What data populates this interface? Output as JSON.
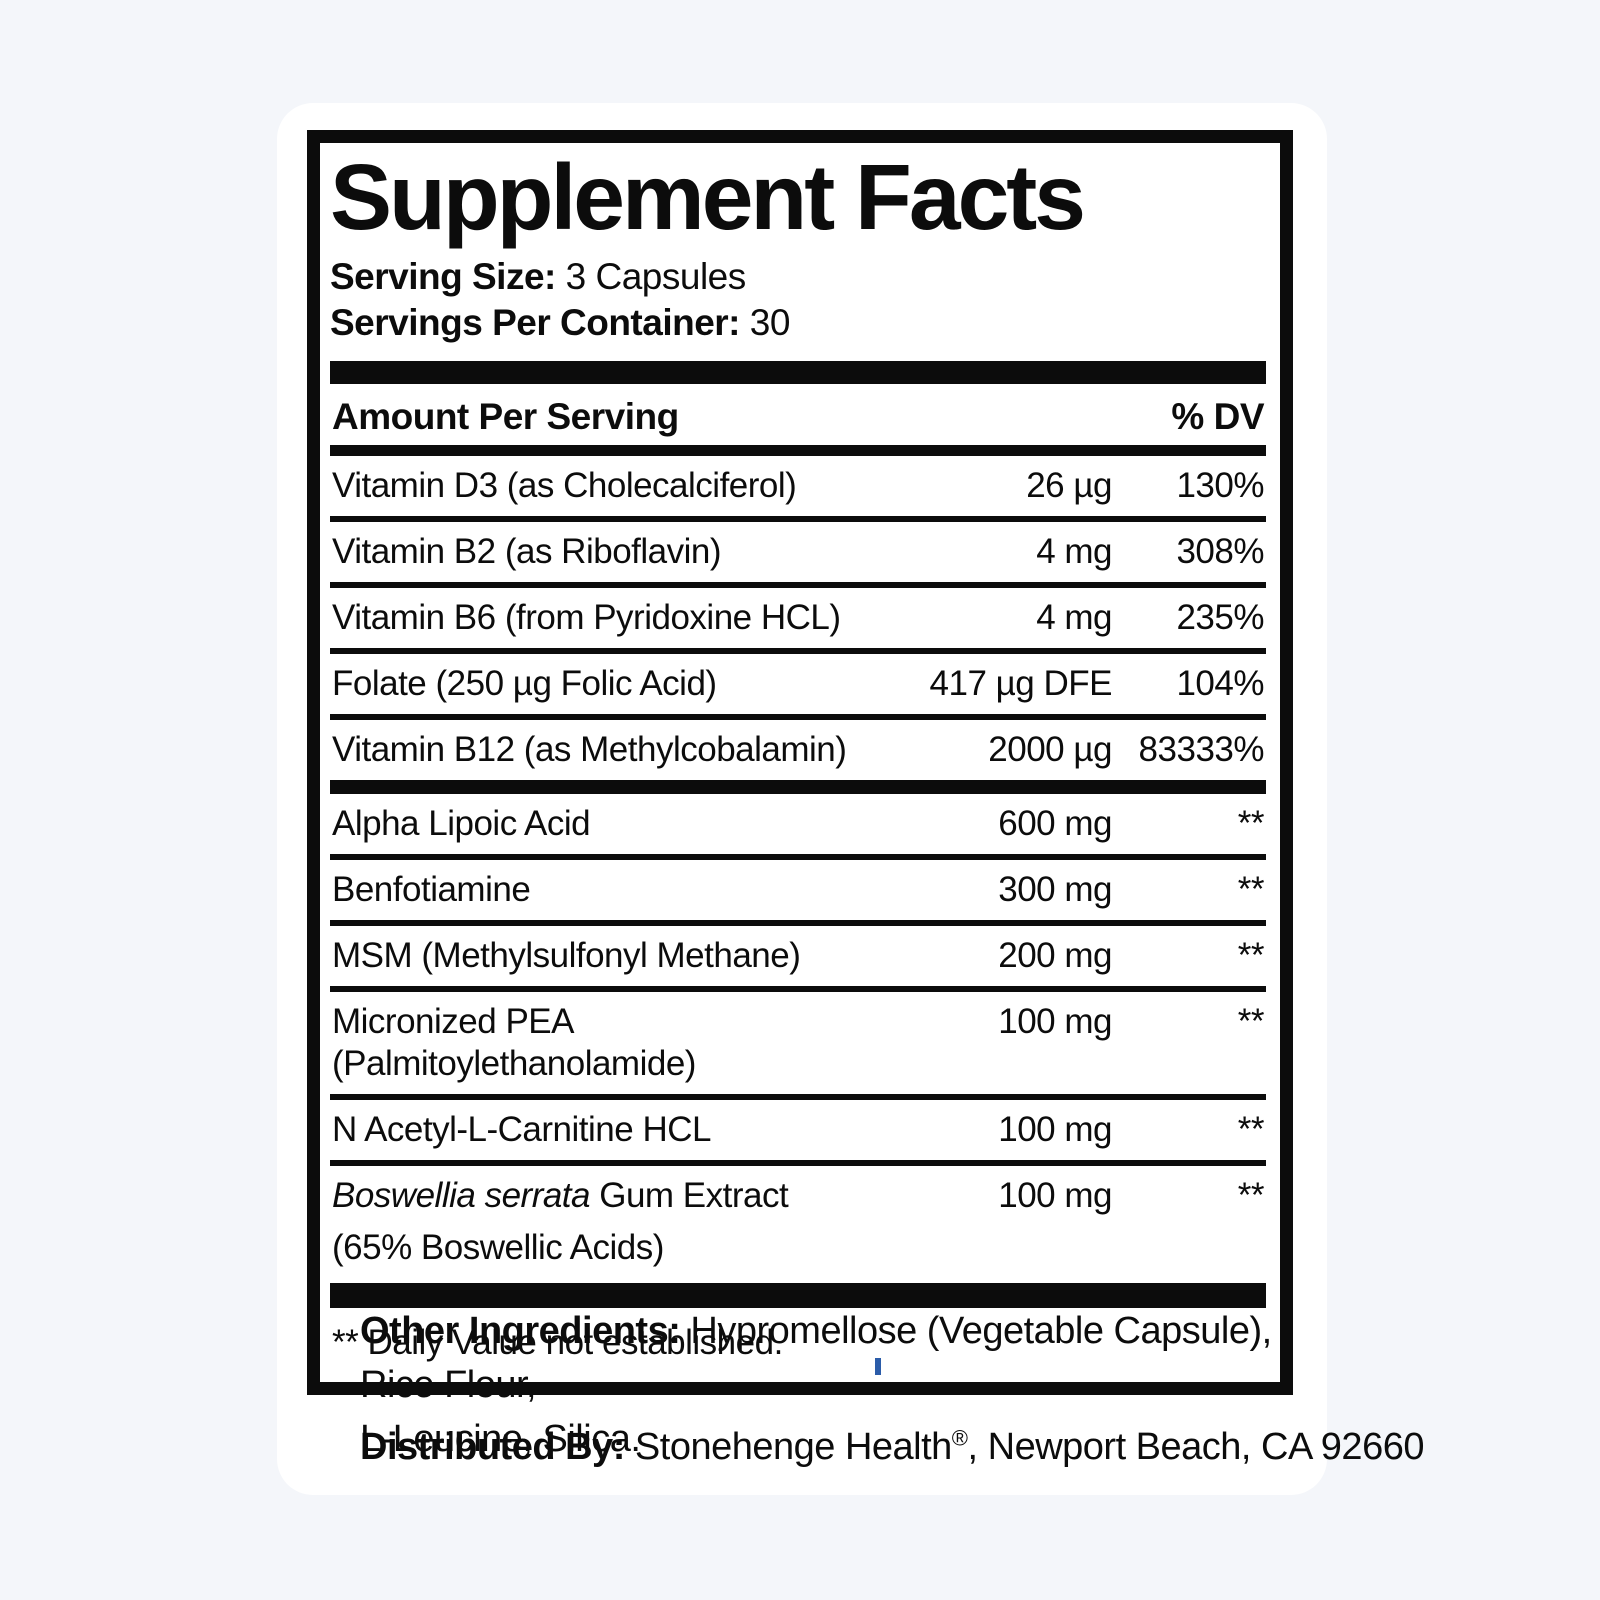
{
  "label": {
    "title": "Supplement Facts",
    "serving_size_label": "Serving Size:",
    "serving_size_value": "3 Capsules",
    "servings_per_container_label": "Servings Per Container:",
    "servings_per_container_value": "30",
    "header": {
      "amount": "Amount Per Serving",
      "dv": "% DV"
    },
    "rows": [
      {
        "name": "Vitamin D3 (as Cholecalciferol)",
        "amount": "26 µg",
        "dv": "130%"
      },
      {
        "name": "Vitamin B2 (as Riboflavin)",
        "amount": "4 mg",
        "dv": "308%"
      },
      {
        "name": "Vitamin B6 (from Pyridoxine HCL)",
        "amount": "4 mg",
        "dv": "235%"
      },
      {
        "name": "Folate (250 µg Folic Acid)",
        "amount": "417 µg DFE",
        "dv": "104%"
      },
      {
        "name": "Vitamin B12 (as Methylcobalamin)",
        "amount": "2000 µg",
        "dv": "83333%"
      },
      {
        "name": "Alpha Lipoic Acid",
        "amount": "600 mg",
        "dv": "**"
      },
      {
        "name": "Benfotiamine",
        "amount": "300 mg",
        "dv": "**"
      },
      {
        "name": "MSM (Methylsulfonyl Methane)",
        "amount": "200 mg",
        "dv": "**"
      },
      {
        "name": "Micronized PEA (Palmitoylethanolamide)",
        "amount": "100 mg",
        "dv": "**"
      },
      {
        "name": "N Acetyl-L-Carnitine HCL",
        "amount": "100 mg",
        "dv": "**"
      },
      {
        "name_italic": "Boswellia serrata",
        "name_rest": " Gum Extract",
        "name_line2": "(65% Boswellic Acids)",
        "amount": "100 mg",
        "dv": "**"
      }
    ],
    "footnote": "** Daily Value not established."
  },
  "footer": {
    "other_ingredients_label": "Other Ingredients:",
    "other_ingredients_line1": " Hypromellose (Vegetable Capsule), Rice Flour,",
    "other_ingredients_line2": "L-Leucine, Silica.",
    "distributed_label": "Distributed By:",
    "distributed_value_pre": " Stonehenge Health",
    "distributed_reg": "®",
    "distributed_value_post": ", Newport Beach, CA 92660"
  },
  "colors": {
    "page_bg": "#f4f6fa",
    "card_bg": "#ffffff",
    "ink": "#0c0c0c",
    "cursor_blue": "#2b5ca9"
  }
}
